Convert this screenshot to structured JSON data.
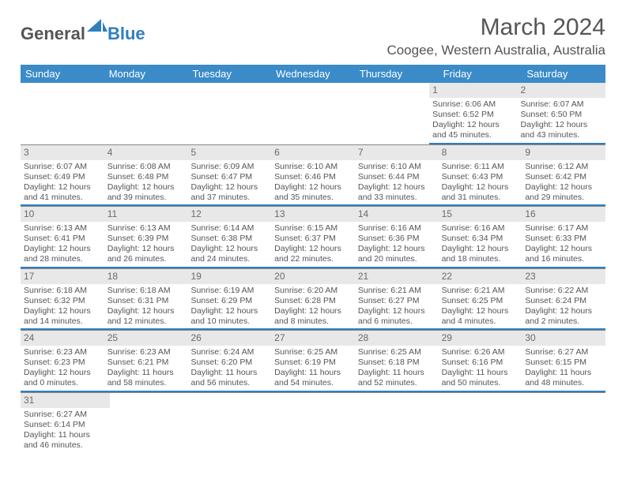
{
  "logo": {
    "text1": "General",
    "text2": "Blue"
  },
  "title": "March 2024",
  "location": "Coogee, Western Australia, Australia",
  "dows": [
    "Sunday",
    "Monday",
    "Tuesday",
    "Wednesday",
    "Thursday",
    "Friday",
    "Saturday"
  ],
  "colors": {
    "header_bg": "#3b8bc8",
    "accent": "#2f7fbf",
    "daynum_bg": "#e8e8e8",
    "text": "#555555",
    "border": "#888888"
  },
  "weeks": [
    [
      null,
      null,
      null,
      null,
      null,
      {
        "n": "1",
        "sr": "Sunrise: 6:06 AM",
        "ss": "Sunset: 6:52 PM",
        "d1": "Daylight: 12 hours",
        "d2": "and 45 minutes."
      },
      {
        "n": "2",
        "sr": "Sunrise: 6:07 AM",
        "ss": "Sunset: 6:50 PM",
        "d1": "Daylight: 12 hours",
        "d2": "and 43 minutes."
      }
    ],
    [
      {
        "n": "3",
        "sr": "Sunrise: 6:07 AM",
        "ss": "Sunset: 6:49 PM",
        "d1": "Daylight: 12 hours",
        "d2": "and 41 minutes."
      },
      {
        "n": "4",
        "sr": "Sunrise: 6:08 AM",
        "ss": "Sunset: 6:48 PM",
        "d1": "Daylight: 12 hours",
        "d2": "and 39 minutes."
      },
      {
        "n": "5",
        "sr": "Sunrise: 6:09 AM",
        "ss": "Sunset: 6:47 PM",
        "d1": "Daylight: 12 hours",
        "d2": "and 37 minutes."
      },
      {
        "n": "6",
        "sr": "Sunrise: 6:10 AM",
        "ss": "Sunset: 6:46 PM",
        "d1": "Daylight: 12 hours",
        "d2": "and 35 minutes."
      },
      {
        "n": "7",
        "sr": "Sunrise: 6:10 AM",
        "ss": "Sunset: 6:44 PM",
        "d1": "Daylight: 12 hours",
        "d2": "and 33 minutes."
      },
      {
        "n": "8",
        "sr": "Sunrise: 6:11 AM",
        "ss": "Sunset: 6:43 PM",
        "d1": "Daylight: 12 hours",
        "d2": "and 31 minutes."
      },
      {
        "n": "9",
        "sr": "Sunrise: 6:12 AM",
        "ss": "Sunset: 6:42 PM",
        "d1": "Daylight: 12 hours",
        "d2": "and 29 minutes."
      }
    ],
    [
      {
        "n": "10",
        "sr": "Sunrise: 6:13 AM",
        "ss": "Sunset: 6:41 PM",
        "d1": "Daylight: 12 hours",
        "d2": "and 28 minutes."
      },
      {
        "n": "11",
        "sr": "Sunrise: 6:13 AM",
        "ss": "Sunset: 6:39 PM",
        "d1": "Daylight: 12 hours",
        "d2": "and 26 minutes."
      },
      {
        "n": "12",
        "sr": "Sunrise: 6:14 AM",
        "ss": "Sunset: 6:38 PM",
        "d1": "Daylight: 12 hours",
        "d2": "and 24 minutes."
      },
      {
        "n": "13",
        "sr": "Sunrise: 6:15 AM",
        "ss": "Sunset: 6:37 PM",
        "d1": "Daylight: 12 hours",
        "d2": "and 22 minutes."
      },
      {
        "n": "14",
        "sr": "Sunrise: 6:16 AM",
        "ss": "Sunset: 6:36 PM",
        "d1": "Daylight: 12 hours",
        "d2": "and 20 minutes."
      },
      {
        "n": "15",
        "sr": "Sunrise: 6:16 AM",
        "ss": "Sunset: 6:34 PM",
        "d1": "Daylight: 12 hours",
        "d2": "and 18 minutes."
      },
      {
        "n": "16",
        "sr": "Sunrise: 6:17 AM",
        "ss": "Sunset: 6:33 PM",
        "d1": "Daylight: 12 hours",
        "d2": "and 16 minutes."
      }
    ],
    [
      {
        "n": "17",
        "sr": "Sunrise: 6:18 AM",
        "ss": "Sunset: 6:32 PM",
        "d1": "Daylight: 12 hours",
        "d2": "and 14 minutes."
      },
      {
        "n": "18",
        "sr": "Sunrise: 6:18 AM",
        "ss": "Sunset: 6:31 PM",
        "d1": "Daylight: 12 hours",
        "d2": "and 12 minutes."
      },
      {
        "n": "19",
        "sr": "Sunrise: 6:19 AM",
        "ss": "Sunset: 6:29 PM",
        "d1": "Daylight: 12 hours",
        "d2": "and 10 minutes."
      },
      {
        "n": "20",
        "sr": "Sunrise: 6:20 AM",
        "ss": "Sunset: 6:28 PM",
        "d1": "Daylight: 12 hours",
        "d2": "and 8 minutes."
      },
      {
        "n": "21",
        "sr": "Sunrise: 6:21 AM",
        "ss": "Sunset: 6:27 PM",
        "d1": "Daylight: 12 hours",
        "d2": "and 6 minutes."
      },
      {
        "n": "22",
        "sr": "Sunrise: 6:21 AM",
        "ss": "Sunset: 6:25 PM",
        "d1": "Daylight: 12 hours",
        "d2": "and 4 minutes."
      },
      {
        "n": "23",
        "sr": "Sunrise: 6:22 AM",
        "ss": "Sunset: 6:24 PM",
        "d1": "Daylight: 12 hours",
        "d2": "and 2 minutes."
      }
    ],
    [
      {
        "n": "24",
        "sr": "Sunrise: 6:23 AM",
        "ss": "Sunset: 6:23 PM",
        "d1": "Daylight: 12 hours",
        "d2": "and 0 minutes."
      },
      {
        "n": "25",
        "sr": "Sunrise: 6:23 AM",
        "ss": "Sunset: 6:21 PM",
        "d1": "Daylight: 11 hours",
        "d2": "and 58 minutes."
      },
      {
        "n": "26",
        "sr": "Sunrise: 6:24 AM",
        "ss": "Sunset: 6:20 PM",
        "d1": "Daylight: 11 hours",
        "d2": "and 56 minutes."
      },
      {
        "n": "27",
        "sr": "Sunrise: 6:25 AM",
        "ss": "Sunset: 6:19 PM",
        "d1": "Daylight: 11 hours",
        "d2": "and 54 minutes."
      },
      {
        "n": "28",
        "sr": "Sunrise: 6:25 AM",
        "ss": "Sunset: 6:18 PM",
        "d1": "Daylight: 11 hours",
        "d2": "and 52 minutes."
      },
      {
        "n": "29",
        "sr": "Sunrise: 6:26 AM",
        "ss": "Sunset: 6:16 PM",
        "d1": "Daylight: 11 hours",
        "d2": "and 50 minutes."
      },
      {
        "n": "30",
        "sr": "Sunrise: 6:27 AM",
        "ss": "Sunset: 6:15 PM",
        "d1": "Daylight: 11 hours",
        "d2": "and 48 minutes."
      }
    ],
    [
      {
        "n": "31",
        "sr": "Sunrise: 6:27 AM",
        "ss": "Sunset: 6:14 PM",
        "d1": "Daylight: 11 hours",
        "d2": "and 46 minutes."
      },
      null,
      null,
      null,
      null,
      null,
      null
    ]
  ]
}
